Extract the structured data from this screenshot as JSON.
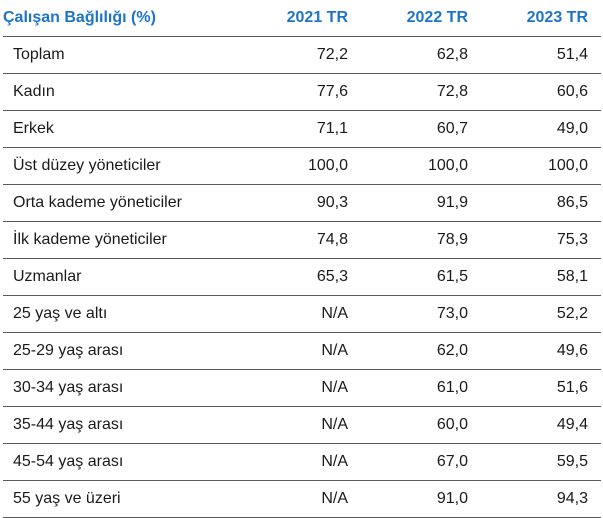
{
  "header": {
    "title": "Çalışan Bağlılığı (%)",
    "col_2021": "2021 TR",
    "col_2022": "2022 TR",
    "col_2023": "2023 TR"
  },
  "rows": [
    {
      "label": "Toplam",
      "y2021": "72,2",
      "y2022": "62,8",
      "y2023": "51,4"
    },
    {
      "label": "Kadın",
      "y2021": "77,6",
      "y2022": "72,8",
      "y2023": "60,6"
    },
    {
      "label": "Erkek",
      "y2021": "71,1",
      "y2022": "60,7",
      "y2023": "49,0"
    },
    {
      "label": "Üst düzey yöneticiler",
      "y2021": "100,0",
      "y2022": "100,0",
      "y2023": "100,0"
    },
    {
      "label": "Orta kademe yöneticiler",
      "y2021": "90,3",
      "y2022": "91,9",
      "y2023": "86,5"
    },
    {
      "label": "İlk kademe yöneticiler",
      "y2021": "74,8",
      "y2022": "78,9",
      "y2023": "75,3"
    },
    {
      "label": "Uzmanlar",
      "y2021": "65,3",
      "y2022": "61,5",
      "y2023": "58,1"
    },
    {
      "label": "25 yaş ve altı",
      "y2021": "N/A",
      "y2022": "73,0",
      "y2023": "52,2"
    },
    {
      "label": "25-29 yaş arası",
      "y2021": "N/A",
      "y2022": "62,0",
      "y2023": "49,6"
    },
    {
      "label": "30-34 yaş arası",
      "y2021": "N/A",
      "y2022": "61,0",
      "y2023": "51,6"
    },
    {
      "label": "35-44 yaş arası",
      "y2021": "N/A",
      "y2022": "60,0",
      "y2023": "49,4"
    },
    {
      "label": "45-54 yaş arası",
      "y2021": "N/A",
      "y2022": "67,0",
      "y2023": "59,5"
    },
    {
      "label": "55 yaş ve üzeri",
      "y2021": "N/A",
      "y2022": "91,0",
      "y2023": "94,3"
    }
  ]
}
